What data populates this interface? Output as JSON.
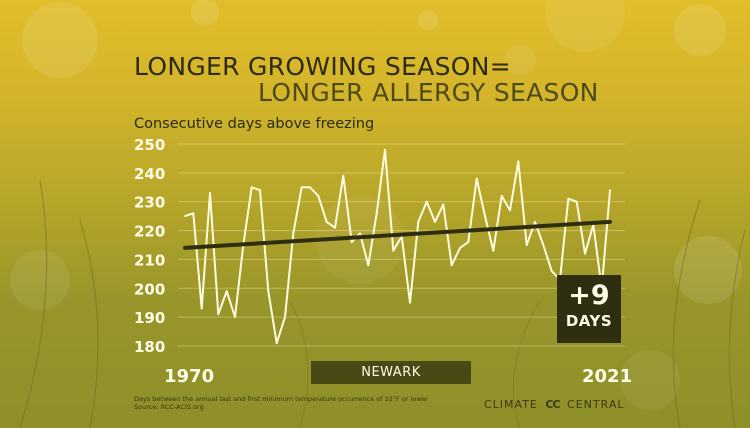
{
  "title_line1": "LONGER GROWING SEASON=",
  "title_line2": "LONGER ALLERGY SEASON",
  "subtitle": "Consecutive days above freezing",
  "station": "NEWARK",
  "year_start": "1970",
  "year_end": "2021",
  "badge": {
    "value": "+9",
    "unit": "DAYS"
  },
  "source_note_line1": "Days between the annual last and first minimum temperature occurrence of 32°F or lower",
  "source_note_line2": "Source: RCC-ACIS.org",
  "brand": {
    "left": "CLIMATE",
    "mark": "CC",
    "right": "CENTRAL"
  },
  "colors": {
    "line": "#fffbe0",
    "trend": "#2e2d10",
    "badge": "#2f2e10",
    "station_bar": "#4a4814"
  },
  "chart_data": {
    "type": "line",
    "title": "LONGER GROWING SEASON= LONGER ALLERGY SEASON",
    "ylabel": "Consecutive days above freezing",
    "xlim": [
      1970,
      2021
    ],
    "ylim": [
      180,
      250
    ],
    "yticks": [
      180,
      190,
      200,
      210,
      220,
      230,
      240,
      250
    ],
    "grid": true,
    "x": [
      1970,
      1971,
      1972,
      1973,
      1974,
      1975,
      1976,
      1977,
      1978,
      1979,
      1980,
      1981,
      1982,
      1983,
      1984,
      1985,
      1986,
      1987,
      1988,
      1989,
      1990,
      1991,
      1992,
      1993,
      1994,
      1995,
      1996,
      1997,
      1998,
      1999,
      2000,
      2001,
      2002,
      2003,
      2004,
      2005,
      2006,
      2007,
      2008,
      2009,
      2010,
      2011,
      2012,
      2013,
      2014,
      2015,
      2016,
      2017,
      2018,
      2019,
      2020,
      2021
    ],
    "series": [
      {
        "values": [
          225,
          226,
          193,
          233,
          191,
          199,
          190,
          215,
          235,
          234,
          199,
          181,
          190,
          219,
          235,
          235,
          232,
          223,
          221,
          239,
          216,
          219,
          208,
          226,
          248,
          213,
          218,
          195,
          223,
          230,
          223,
          229,
          208,
          214,
          216,
          238,
          225,
          213,
          232,
          227,
          244,
          215,
          223,
          215,
          206,
          203,
          231,
          230,
          212,
          222,
          200,
          234
        ]
      }
    ],
    "trend": {
      "start": [
        1970,
        214
      ],
      "end": [
        2021,
        223
      ]
    }
  }
}
